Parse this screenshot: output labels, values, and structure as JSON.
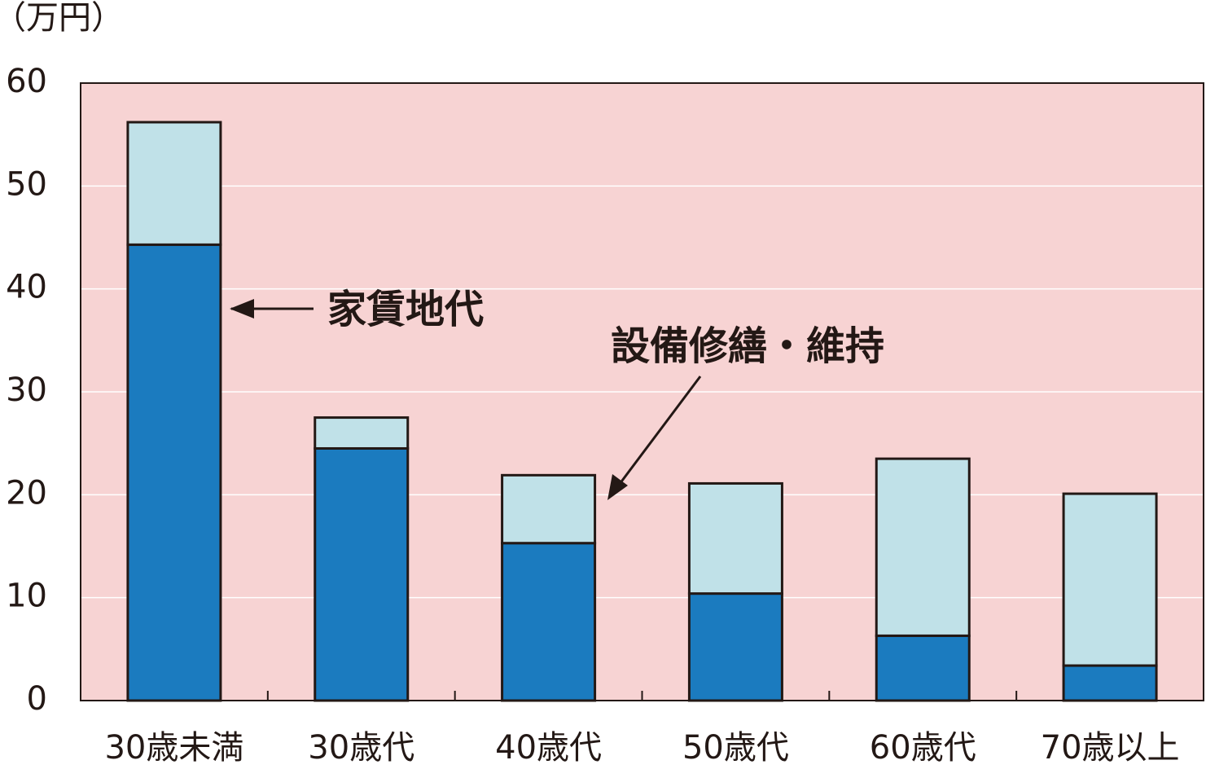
{
  "chart_data": {
    "type": "stacked_bar",
    "y_label": "（万円）",
    "categories": [
      "30歳未満",
      "30歳代",
      "40歳代",
      "50歳代",
      "60歳代",
      "70歳以上"
    ],
    "series": [
      {
        "name": "家賃地代",
        "color": "#1b7bbf",
        "values": [
          44.3,
          24.5,
          15.3,
          10.4,
          6.3,
          3.4
        ]
      },
      {
        "name": "設備修繕・維持",
        "color": "#c0e1e8",
        "values": [
          11.9,
          3.0,
          6.6,
          10.7,
          17.2,
          16.7
        ]
      }
    ],
    "ylim": [
      0,
      60
    ],
    "yticks": [
      0,
      10,
      20,
      30,
      40,
      50,
      60
    ],
    "grid": true,
    "background": "#f7d3d3"
  }
}
